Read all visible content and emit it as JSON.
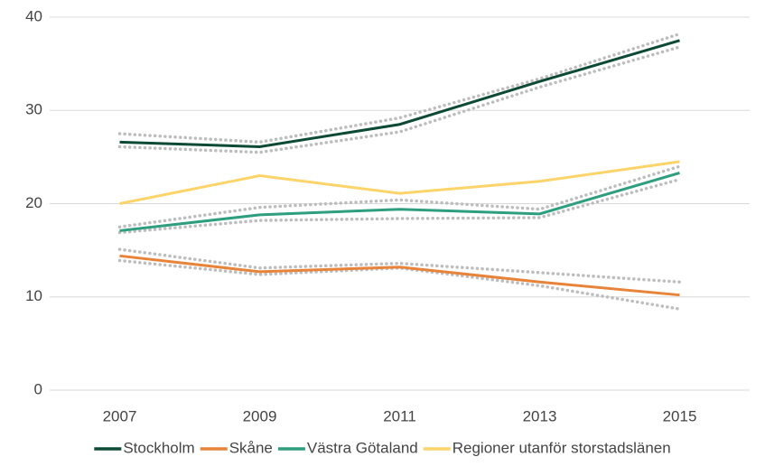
{
  "chart_data": {
    "type": "line",
    "categories": [
      "2007",
      "2009",
      "2011",
      "2013",
      "2015"
    ],
    "series": [
      {
        "name": "Stockholm",
        "color": "#0d4a36",
        "values": [
          26.6,
          26.1,
          28.5,
          33.1,
          37.5
        ],
        "upper": [
          27.5,
          26.6,
          29.2,
          33.4,
          38.2
        ],
        "lower": [
          26.1,
          25.5,
          27.7,
          32.5,
          36.8
        ]
      },
      {
        "name": "Skåne",
        "color": "#e8833a",
        "values": [
          14.4,
          12.7,
          13.2,
          11.6,
          10.2
        ],
        "upper": [
          15.1,
          13.1,
          13.6,
          12.6,
          11.6
        ],
        "lower": [
          13.9,
          12.4,
          13.1,
          11.2,
          8.7
        ]
      },
      {
        "name": "Västra Götaland",
        "color": "#2e9e7f",
        "values": [
          17.1,
          18.8,
          19.4,
          18.9,
          23.3
        ],
        "upper": [
          17.5,
          19.6,
          20.4,
          19.4,
          24.0
        ],
        "lower": [
          16.9,
          18.2,
          18.4,
          18.5,
          22.6
        ]
      },
      {
        "name": "Regioner utanför storstadslänen",
        "color": "#fcd46a",
        "values": [
          20.0,
          23.0,
          21.1,
          22.4,
          24.5
        ]
      }
    ],
    "band_color": "#bdbdbd",
    "ylim": [
      0,
      40
    ],
    "yticks": [
      0,
      10,
      20,
      30,
      40
    ],
    "grid": true,
    "legend": "bottom"
  }
}
